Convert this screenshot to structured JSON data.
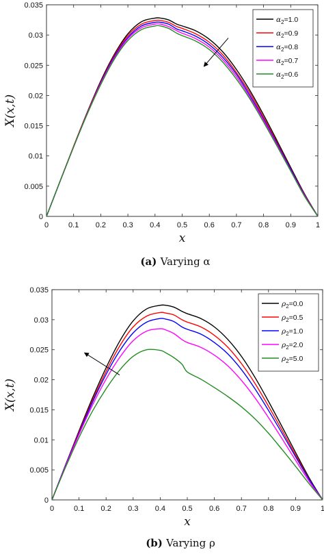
{
  "chart_data": [
    {
      "type": "line",
      "caption_label": "(a)",
      "caption_text": "Varying α",
      "xlabel": "x",
      "ylabel": "X(x,t)",
      "xlim": [
        0,
        1
      ],
      "ylim": [
        0,
        0.035
      ],
      "xticks": [
        "0",
        "0.1",
        "0.2",
        "0.3",
        "0.4",
        "0.5",
        "0.6",
        "0.7",
        "0.8",
        "0.9",
        "1"
      ],
      "yticks": [
        "0",
        "0.005",
        "0.01",
        "0.015",
        "0.02",
        "0.025",
        "0.03",
        "0.035"
      ],
      "legend_position": "top-right",
      "legend_symbol": "α",
      "x": [
        0,
        0.05,
        0.1,
        0.15,
        0.2,
        0.25,
        0.3,
        0.35,
        0.4,
        0.42,
        0.45,
        0.48,
        0.5,
        0.55,
        0.6,
        0.65,
        0.7,
        0.75,
        0.8,
        0.85,
        0.9,
        0.95,
        1
      ],
      "series": [
        {
          "name": "=1.0",
          "color": "#000000",
          "values": [
            0,
            0.0058,
            0.0116,
            0.0172,
            0.0224,
            0.0268,
            0.0302,
            0.0322,
            0.0328,
            0.0328,
            0.0325,
            0.0318,
            0.0315,
            0.0307,
            0.0293,
            0.0272,
            0.0243,
            0.0208,
            0.0168,
            0.0125,
            0.0081,
            0.0038,
            0
          ]
        },
        {
          "name": "=0.9",
          "color": "#ff0000",
          "values": [
            0,
            0.0058,
            0.0116,
            0.0171,
            0.0222,
            0.0266,
            0.0299,
            0.0318,
            0.0324,
            0.0324,
            0.0321,
            0.0314,
            0.0311,
            0.0302,
            0.0288,
            0.0267,
            0.0238,
            0.0204,
            0.0164,
            0.0122,
            0.0079,
            0.0037,
            0
          ]
        },
        {
          "name": "=0.8",
          "color": "#0000ff",
          "values": [
            0,
            0.0058,
            0.0115,
            0.017,
            0.0221,
            0.0264,
            0.0296,
            0.0315,
            0.0321,
            0.0321,
            0.0318,
            0.031,
            0.0307,
            0.0298,
            0.0284,
            0.0263,
            0.0235,
            0.02,
            0.0161,
            0.012,
            0.0078,
            0.0036,
            0
          ]
        },
        {
          "name": "=0.7",
          "color": "#ff00ff",
          "values": [
            0,
            0.0058,
            0.0115,
            0.017,
            0.022,
            0.0262,
            0.0294,
            0.0312,
            0.0318,
            0.0318,
            0.0314,
            0.0307,
            0.0303,
            0.0294,
            0.028,
            0.0259,
            0.0231,
            0.0197,
            0.0159,
            0.0118,
            0.0076,
            0.0035,
            0
          ]
        },
        {
          "name": "=0.6",
          "color": "#228b22",
          "values": [
            0,
            0.0058,
            0.0115,
            0.0169,
            0.0218,
            0.026,
            0.0291,
            0.0309,
            0.0315,
            0.0315,
            0.0311,
            0.0303,
            0.0299,
            0.029,
            0.0276,
            0.0255,
            0.0227,
            0.0194,
            0.0156,
            0.0116,
            0.0075,
            0.0034,
            0
          ]
        }
      ],
      "arrow": {
        "from": [
          0.67,
          0.0295
        ],
        "to": [
          0.58,
          0.0248
        ]
      }
    },
    {
      "type": "line",
      "caption_label": "(b)",
      "caption_text": "Varying ρ",
      "xlabel": "x",
      "ylabel": "X(x,t)",
      "xlim": [
        0,
        1
      ],
      "ylim": [
        0,
        0.035
      ],
      "xticks": [
        "0",
        "0.1",
        "0.2",
        "0.3",
        "0.4",
        "0.5",
        "0.6",
        "0.7",
        "0.8",
        "0.9",
        "1"
      ],
      "yticks": [
        "0",
        "0.005",
        "0.01",
        "0.015",
        "0.02",
        "0.025",
        "0.03",
        "0.035"
      ],
      "legend_position": "top-right",
      "legend_symbol": "ρ",
      "x": [
        0,
        0.05,
        0.1,
        0.15,
        0.2,
        0.25,
        0.3,
        0.35,
        0.4,
        0.42,
        0.45,
        0.48,
        0.5,
        0.55,
        0.6,
        0.65,
        0.7,
        0.75,
        0.8,
        0.85,
        0.9,
        0.95,
        1
      ],
      "series": [
        {
          "name": "=0.0",
          "color": "#000000",
          "values": [
            0,
            0.0058,
            0.0115,
            0.017,
            0.022,
            0.0264,
            0.0298,
            0.0318,
            0.0324,
            0.0324,
            0.0321,
            0.0314,
            0.031,
            0.0302,
            0.0288,
            0.0267,
            0.0239,
            0.0204,
            0.0164,
            0.0122,
            0.0079,
            0.0037,
            0
          ]
        },
        {
          "name": "=0.5",
          "color": "#ff0000",
          "values": [
            0,
            0.0057,
            0.0113,
            0.0166,
            0.0214,
            0.0256,
            0.0288,
            0.0306,
            0.0312,
            0.0311,
            0.0308,
            0.03,
            0.0296,
            0.0288,
            0.0274,
            0.0254,
            0.0227,
            0.0194,
            0.0156,
            0.0116,
            0.0075,
            0.0035,
            0
          ]
        },
        {
          "name": "=1.0",
          "color": "#0000ff",
          "values": [
            0,
            0.0057,
            0.0111,
            0.0163,
            0.0209,
            0.0248,
            0.0278,
            0.0296,
            0.0302,
            0.0301,
            0.0297,
            0.0288,
            0.0284,
            0.0276,
            0.0262,
            0.0243,
            0.0217,
            0.0185,
            0.0149,
            0.0111,
            0.0072,
            0.0034,
            0
          ]
        },
        {
          "name": "=2.0",
          "color": "#ff00ff",
          "values": [
            0,
            0.0056,
            0.0109,
            0.0158,
            0.0201,
            0.0237,
            0.0265,
            0.0281,
            0.0285,
            0.0283,
            0.0277,
            0.0267,
            0.0262,
            0.0254,
            0.0241,
            0.0223,
            0.0199,
            0.017,
            0.0137,
            0.0102,
            0.0066,
            0.0031,
            0
          ]
        },
        {
          "name": "=5.0",
          "color": "#228b22",
          "values": [
            0,
            0.0054,
            0.0104,
            0.0148,
            0.0185,
            0.0216,
            0.0239,
            0.025,
            0.0249,
            0.0245,
            0.0237,
            0.0226,
            0.0213,
            0.0201,
            0.0187,
            0.0172,
            0.0155,
            0.0135,
            0.0111,
            0.0084,
            0.0056,
            0.0027,
            0
          ]
        }
      ],
      "arrow": {
        "from": [
          0.25,
          0.0208
        ],
        "to": [
          0.12,
          0.0245
        ]
      }
    }
  ]
}
